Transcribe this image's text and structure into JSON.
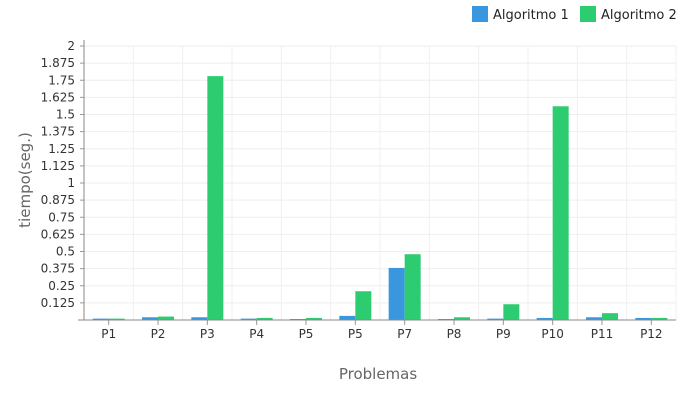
{
  "chart_data": {
    "type": "bar",
    "title": "",
    "xlabel": "Problemas",
    "ylabel": "tiempo(seg.)",
    "ylim": [
      0,
      2
    ],
    "yticks": [
      "0.125",
      "0.25",
      "0.375",
      "0.5",
      "0.625",
      "0.75",
      "0.875",
      "1",
      "1.125",
      "1.25",
      "1.375",
      "1.5",
      "1.625",
      "1.75",
      "1.875",
      "2"
    ],
    "ytick_values": [
      0.125,
      0.25,
      0.375,
      0.5,
      0.625,
      0.75,
      0.875,
      1,
      1.125,
      1.25,
      1.375,
      1.5,
      1.625,
      1.75,
      1.875,
      2
    ],
    "grid": true,
    "legend_position": "top-right",
    "categories": [
      "P1",
      "P2",
      "P3",
      "P4",
      "P5",
      "P5",
      "P7",
      "P8",
      "P9",
      "P10",
      "P11",
      "P12"
    ],
    "series": [
      {
        "name": "Algoritmo 1",
        "color": "#3b97dd",
        "values": [
          0.01,
          0.02,
          0.02,
          0.01,
          0.005,
          0.03,
          0.38,
          0.005,
          0.01,
          0.015,
          0.02,
          0.015
        ]
      },
      {
        "name": "Algoritmo 2",
        "color": "#2ecc71",
        "values": [
          0.01,
          0.025,
          1.78,
          0.015,
          0.015,
          0.21,
          0.48,
          0.02,
          0.115,
          1.56,
          0.05,
          0.015
        ]
      }
    ]
  }
}
